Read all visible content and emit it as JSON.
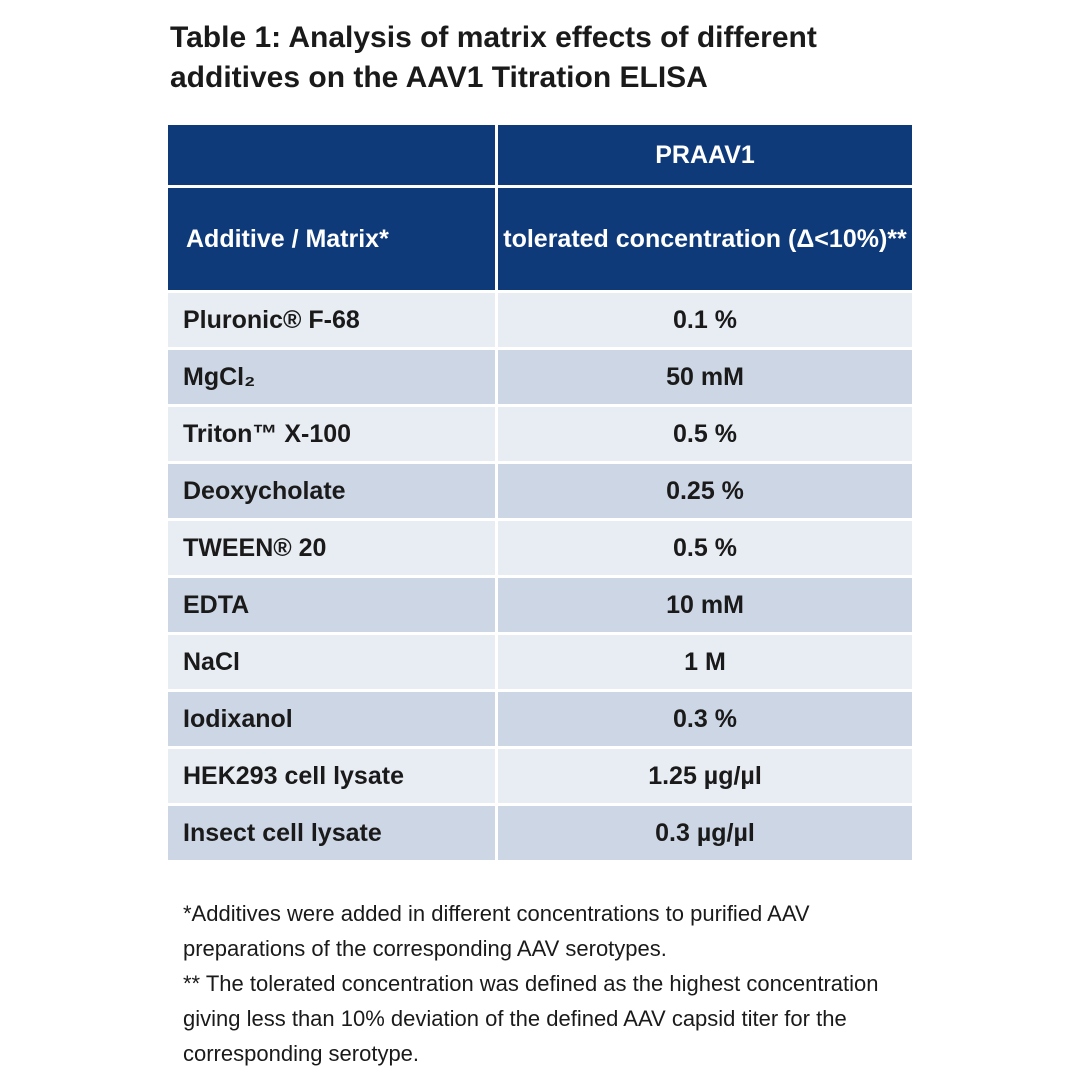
{
  "title": "Table 1: Analysis of matrix effects of different additives on the AAV1 Titration ELISA",
  "table": {
    "header": {
      "group": "PRAAV1",
      "col0": "Additive / Matrix*",
      "col1": "tolerated concentration (Δ<10%)**"
    },
    "rows": [
      [
        "Pluronic® F-68",
        "0.1 %"
      ],
      [
        "MgCl₂",
        "50 mM"
      ],
      [
        "Triton™ X-100",
        "0.5 %"
      ],
      [
        "Deoxycholate",
        "0.25 %"
      ],
      [
        "TWEEN® 20",
        "0.5 %"
      ],
      [
        "EDTA",
        "10 mM"
      ],
      [
        "NaCl",
        "1 M"
      ],
      [
        "Iodixanol",
        "0.3 %"
      ],
      [
        "HEK293 cell lysate",
        "1.25 µg/µl"
      ],
      [
        "Insect cell lysate",
        "0.3 µg/µl"
      ]
    ]
  },
  "footnotes": [
    "*Additives were added in different concentrations to purified AAV preparations of the corresponding AAV serotypes.",
    "** The tolerated concentration was defined as the highest concentration giving less than 10% deviation of the defined AAV capsid titer for the corresponding serotype."
  ]
}
